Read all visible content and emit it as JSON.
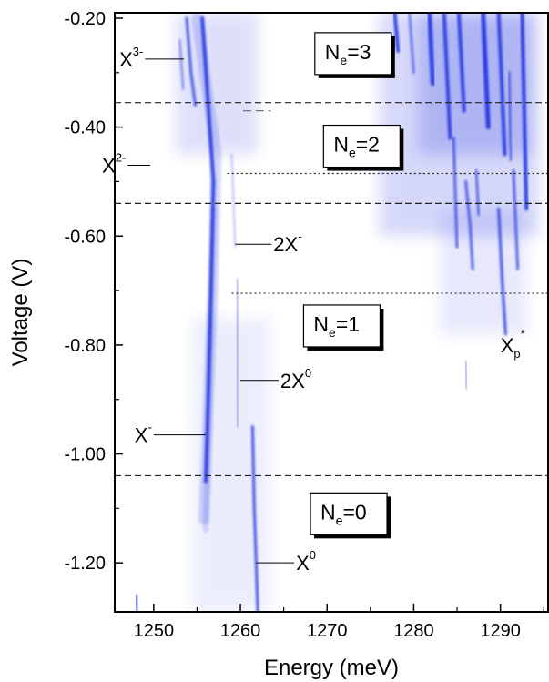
{
  "chart_data": {
    "type": "heatmap",
    "title": "",
    "xlabel": "Energy (meV)",
    "ylabel": "Voltage (V)",
    "xlim": [
      1245.5,
      1295.5
    ],
    "ylim": [
      -1.29,
      -0.19
    ],
    "x_ticks": [
      1250,
      1260,
      1270,
      1280,
      1290
    ],
    "x_tick_labels": [
      "1250",
      "1260",
      "1270",
      "1280",
      "1290"
    ],
    "y_ticks": [
      -0.2,
      -0.4,
      -0.6,
      -0.8,
      -1.0,
      -1.2
    ],
    "y_tick_labels": [
      "-0.20",
      "-0.40",
      "-0.60",
      "-0.80",
      "-1.00",
      "-1.20"
    ],
    "color": "#1a2ee0",
    "grid": false,
    "lines": [
      {
        "name": "x-minus-line",
        "x": [
          1255.6,
          1256.9,
          1256.6,
          1256.2,
          1256.0
        ],
        "y": [
          -0.2,
          -0.5,
          -0.7,
          -0.95,
          -1.05
        ],
        "width": 4,
        "opacity": 0.85
      },
      {
        "name": "x-minus-glow",
        "x": [
          1255.0,
          1257.2,
          1256.8,
          1256.2,
          1255.8
        ],
        "y": [
          -0.2,
          -0.45,
          -0.7,
          -0.95,
          -1.12
        ],
        "width": 12,
        "opacity": 0.18
      },
      {
        "name": "x0-line",
        "x": [
          1261.4,
          1261.6,
          1262.0
        ],
        "y": [
          -0.95,
          -1.1,
          -1.29
        ],
        "width": 3,
        "opacity": 0.8
      },
      {
        "name": "two-x0-line",
        "x": [
          1259.6,
          1259.7
        ],
        "y": [
          -0.68,
          -0.95
        ],
        "width": 2,
        "opacity": 0.45
      },
      {
        "name": "x2-minus-line",
        "x": [
          1253.8,
          1254.3,
          1254.8
        ],
        "y": [
          -0.2,
          -0.3,
          -0.36
        ],
        "width": 3,
        "opacity": 0.75
      },
      {
        "name": "x3-minus-line",
        "x": [
          1253.0,
          1253.4
        ],
        "y": [
          -0.24,
          -0.33
        ],
        "width": 2,
        "opacity": 0.6
      },
      {
        "name": "faint-left-line",
        "x": [
          1259.0,
          1259.4
        ],
        "y": [
          -0.45,
          -0.62
        ],
        "width": 2,
        "opacity": 0.3
      },
      {
        "name": "x-minus-tail",
        "x": [
          1257.0,
          1256.5,
          1256.0
        ],
        "y": [
          -0.55,
          -0.85,
          -1.14
        ],
        "width": 6,
        "opacity": 0.15
      },
      {
        "name": "xp-line-1",
        "x": [
          1289.8,
          1290.2,
          1290.6
        ],
        "y": [
          -0.55,
          -0.68,
          -0.78
        ],
        "width": 3,
        "opacity": 0.8
      },
      {
        "name": "xp-line-2",
        "x": [
          1286.0,
          1286.5,
          1286.8
        ],
        "y": [
          -0.5,
          -0.58,
          -0.66
        ],
        "width": 3,
        "opacity": 0.7
      },
      {
        "name": "xp-line-3",
        "x": [
          1291.5,
          1292.0
        ],
        "y": [
          -0.48,
          -0.66
        ],
        "width": 3,
        "opacity": 0.7
      },
      {
        "name": "top-line-1",
        "x": [
          1277.8,
          1278.2
        ],
        "y": [
          -0.19,
          -0.26
        ],
        "width": 4,
        "opacity": 0.85
      },
      {
        "name": "top-line-2",
        "x": [
          1281.8,
          1282.2
        ],
        "y": [
          -0.19,
          -0.32
        ],
        "width": 5,
        "opacity": 0.85
      },
      {
        "name": "top-line-3",
        "x": [
          1283.5,
          1284.2
        ],
        "y": [
          -0.19,
          -0.42
        ],
        "width": 4,
        "opacity": 0.85
      },
      {
        "name": "top-line-4",
        "x": [
          1285.2,
          1285.8
        ],
        "y": [
          -0.19,
          -0.37
        ],
        "width": 4,
        "opacity": 0.85
      },
      {
        "name": "top-line-5",
        "x": [
          1288.0,
          1288.6
        ],
        "y": [
          -0.19,
          -0.4
        ],
        "width": 5,
        "opacity": 0.9
      },
      {
        "name": "top-line-6",
        "x": [
          1289.8,
          1290.5
        ],
        "y": [
          -0.19,
          -0.45
        ],
        "width": 4,
        "opacity": 0.85
      },
      {
        "name": "top-line-7",
        "x": [
          1292.5,
          1293.0
        ],
        "y": [
          -0.19,
          -0.55
        ],
        "width": 4,
        "opacity": 0.9
      },
      {
        "name": "top-line-8",
        "x": [
          1279.5,
          1280.0
        ],
        "y": [
          -0.19,
          -0.3
        ],
        "width": 3,
        "opacity": 0.55
      },
      {
        "name": "mid-line-1",
        "x": [
          1284.6,
          1285.0
        ],
        "y": [
          -0.42,
          -0.62
        ],
        "width": 3,
        "opacity": 0.7
      },
      {
        "name": "mid-line-2",
        "x": [
          1287.2,
          1287.5
        ],
        "y": [
          -0.48,
          -0.56
        ],
        "width": 3,
        "opacity": 0.65
      },
      {
        "name": "mid-line-3",
        "x": [
          1291.0,
          1291.2
        ],
        "y": [
          -0.3,
          -0.46
        ],
        "width": 3,
        "opacity": 0.6
      },
      {
        "name": "lower-spot",
        "x": [
          1286.0,
          1286.1
        ],
        "y": [
          -0.83,
          -0.88
        ],
        "width": 2,
        "opacity": 0.5
      },
      {
        "name": "bottom-left-spot",
        "x": [
          1248.0,
          1248.1
        ],
        "y": [
          -1.26,
          -1.29
        ],
        "width": 3,
        "opacity": 0.8
      }
    ],
    "clouds": [
      {
        "name": "top-right-haze",
        "x": [
          1276.0,
          1294.5
        ],
        "y": [
          -0.19,
          -0.6
        ],
        "opacity": 0.18
      },
      {
        "name": "top-right-haze-core",
        "x": [
          1280.5,
          1293.5
        ],
        "y": [
          -0.19,
          -0.45
        ],
        "opacity": 0.2
      },
      {
        "name": "top-left-haze",
        "x": [
          1252.5,
          1262.0
        ],
        "y": [
          -0.19,
          -0.45
        ],
        "opacity": 0.14
      },
      {
        "name": "mid-right-haze",
        "x": [
          1283.0,
          1293.0
        ],
        "y": [
          -0.55,
          -0.78
        ],
        "opacity": 0.1
      },
      {
        "name": "low-haze",
        "x": [
          1254.5,
          1263.5
        ],
        "y": [
          -0.75,
          -1.29
        ],
        "opacity": 0.08
      }
    ],
    "dashed_lines_y": [
      -0.355,
      -0.54,
      -1.04
    ],
    "dotted_segments": [
      {
        "y": -0.485,
        "x": [
          1258.5,
          1295.5
        ]
      },
      {
        "y": -0.705,
        "x": [
          1259.0,
          1295.5
        ]
      }
    ],
    "short_dashes": [
      {
        "y": -0.37,
        "x": [
          1260.3,
          1263.5
        ]
      }
    ],
    "annotations": [
      {
        "name": "annotation-x3-minus",
        "base": "X",
        "sup": "3-",
        "sub": "",
        "x": 1253.5,
        "y": -0.275,
        "text_x": 1249.0,
        "text_y": -0.275,
        "anchor": "end"
      },
      {
        "name": "annotation-x2-minus",
        "base": "X",
        "sup": "2-",
        "sub": "",
        "x": 1249.6,
        "y": -0.47,
        "text_x": 1247.0,
        "text_y": -0.47,
        "anchor": "end"
      },
      {
        "name": "annotation-2x-minus",
        "base": "2X",
        "sup": "-",
        "sub": "",
        "x": 1259.4,
        "y": -0.615,
        "text_x": 1263.6,
        "text_y": -0.615,
        "anchor": "start"
      },
      {
        "name": "annotation-2x0",
        "base": "2X",
        "sup": "0",
        "sub": "",
        "x": 1260.0,
        "y": -0.865,
        "text_x": 1264.4,
        "text_y": -0.865,
        "anchor": "start"
      },
      {
        "name": "annotation-x-minus",
        "base": "X",
        "sup": "-",
        "sub": "",
        "x": 1256.0,
        "y": -0.965,
        "text_x": 1250.0,
        "text_y": -0.965,
        "anchor": "end"
      },
      {
        "name": "annotation-x0",
        "base": "X",
        "sup": "0",
        "sub": "",
        "x": 1261.8,
        "y": -1.2,
        "text_x": 1266.2,
        "text_y": -1.2,
        "anchor": "start"
      },
      {
        "name": "annotation-xp-star",
        "base": "X",
        "sup": "*",
        "sub": "p",
        "x": null,
        "y": null,
        "text_x": 1289.8,
        "text_y": -0.8,
        "anchor": "start"
      }
    ],
    "regions": [
      {
        "name": "region-ne3",
        "base": "N",
        "sub": "e",
        "rest": "=3",
        "x": 1273.0,
        "y": -0.265
      },
      {
        "name": "region-ne2",
        "base": "N",
        "sub": "e",
        "rest": "=2",
        "x": 1274.0,
        "y": -0.435
      },
      {
        "name": "region-ne1",
        "base": "N",
        "sub": "e",
        "rest": "=1",
        "x": 1271.7,
        "y": -0.765
      },
      {
        "name": "region-ne0",
        "base": "N",
        "sub": "e",
        "rest": "=0",
        "x": 1272.5,
        "y": -1.11
      }
    ]
  }
}
